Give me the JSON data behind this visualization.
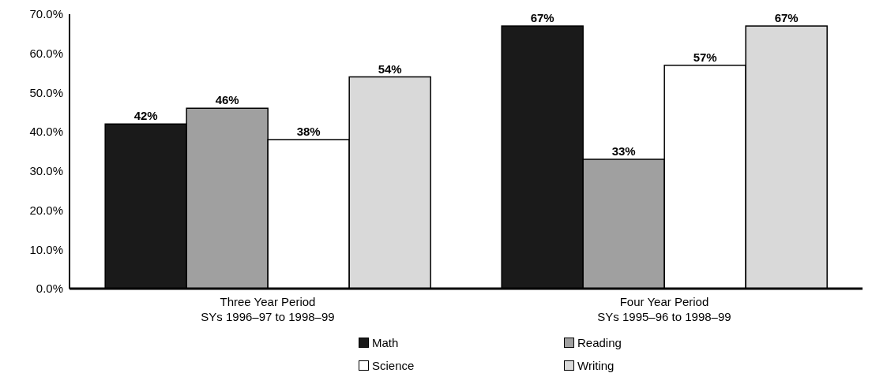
{
  "chart_data": {
    "type": "bar",
    "categories": [
      "Three Year Period\nSYs 1996–97 to 1998–99",
      "Four Year Period\nSYs 1995–96 to 1998–99"
    ],
    "series": [
      {
        "name": "Math",
        "color": "#1a1a1a",
        "values": [
          42,
          67
        ],
        "value_labels": [
          "42%",
          "67%"
        ]
      },
      {
        "name": "Reading",
        "color": "#a0a0a0",
        "values": [
          46,
          33
        ],
        "value_labels": [
          "46%",
          "33%"
        ]
      },
      {
        "name": "Science",
        "color": "#ffffff",
        "values": [
          38,
          57
        ],
        "value_labels": [
          "38%",
          "57%"
        ]
      },
      {
        "name": "Writing",
        "color": "#d9d9d9",
        "values": [
          54,
          67
        ],
        "value_labels": [
          "54%",
          "67%"
        ]
      }
    ],
    "ylim": [
      0,
      70
    ],
    "yticks": [
      {
        "value": 0,
        "label": "0.0%"
      },
      {
        "value": 10,
        "label": "10.0%"
      },
      {
        "value": 20,
        "label": "20.0%"
      },
      {
        "value": 30,
        "label": "30.0%"
      },
      {
        "value": 40,
        "label": "40.0%"
      },
      {
        "value": 50,
        "label": "50.0%"
      },
      {
        "value": 60,
        "label": "60.0%"
      },
      {
        "value": 70,
        "label": "70.0%"
      }
    ],
    "grid": false,
    "legend": "bottom"
  }
}
